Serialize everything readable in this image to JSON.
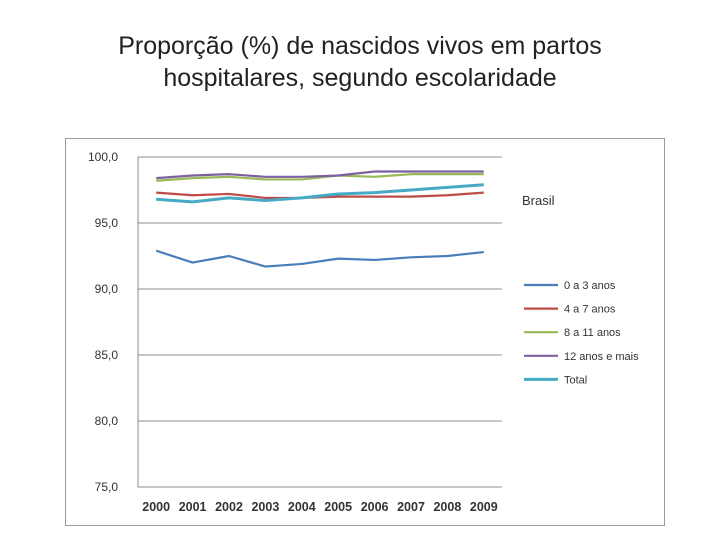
{
  "slide": {
    "title_line1": "Proporção (%) de nascidos vivos em partos",
    "title_line2": "hospitalares, segundo escolaridade"
  },
  "chart_data": {
    "type": "line",
    "title": "Brasil",
    "categories": [
      "2000",
      "2001",
      "2002",
      "2003",
      "2004",
      "2005",
      "2006",
      "2007",
      "2008",
      "2009"
    ],
    "ylim": [
      75,
      100
    ],
    "yticks": [
      "100,0",
      "95,0",
      "90,0",
      "85,0",
      "80,0",
      "75,0"
    ],
    "grid": true,
    "legend_position": "right",
    "series": [
      {
        "name": "0 a 3 anos",
        "color": "#4a7ebb",
        "values": [
          92.9,
          92.0,
          92.5,
          91.7,
          91.9,
          92.3,
          92.2,
          92.4,
          92.5,
          92.8
        ]
      },
      {
        "name": "4 a 7 anos",
        "color": "#be4b48",
        "values": [
          97.3,
          97.1,
          97.2,
          96.9,
          96.9,
          97.0,
          97.0,
          97.0,
          97.1,
          97.3
        ]
      },
      {
        "name": "8 a 11 anos",
        "color": "#98b954",
        "values": [
          98.2,
          98.4,
          98.5,
          98.3,
          98.3,
          98.6,
          98.5,
          98.7,
          98.7,
          98.7
        ]
      },
      {
        "name": "12 anos e mais",
        "color": "#7d60a0",
        "values": [
          98.4,
          98.6,
          98.7,
          98.5,
          98.5,
          98.6,
          98.9,
          98.9,
          98.9,
          98.9
        ]
      },
      {
        "name": "Total",
        "color": "#46aac5",
        "values": [
          96.8,
          96.6,
          96.9,
          96.7,
          96.9,
          97.2,
          97.3,
          97.5,
          97.7,
          97.9
        ]
      }
    ]
  }
}
